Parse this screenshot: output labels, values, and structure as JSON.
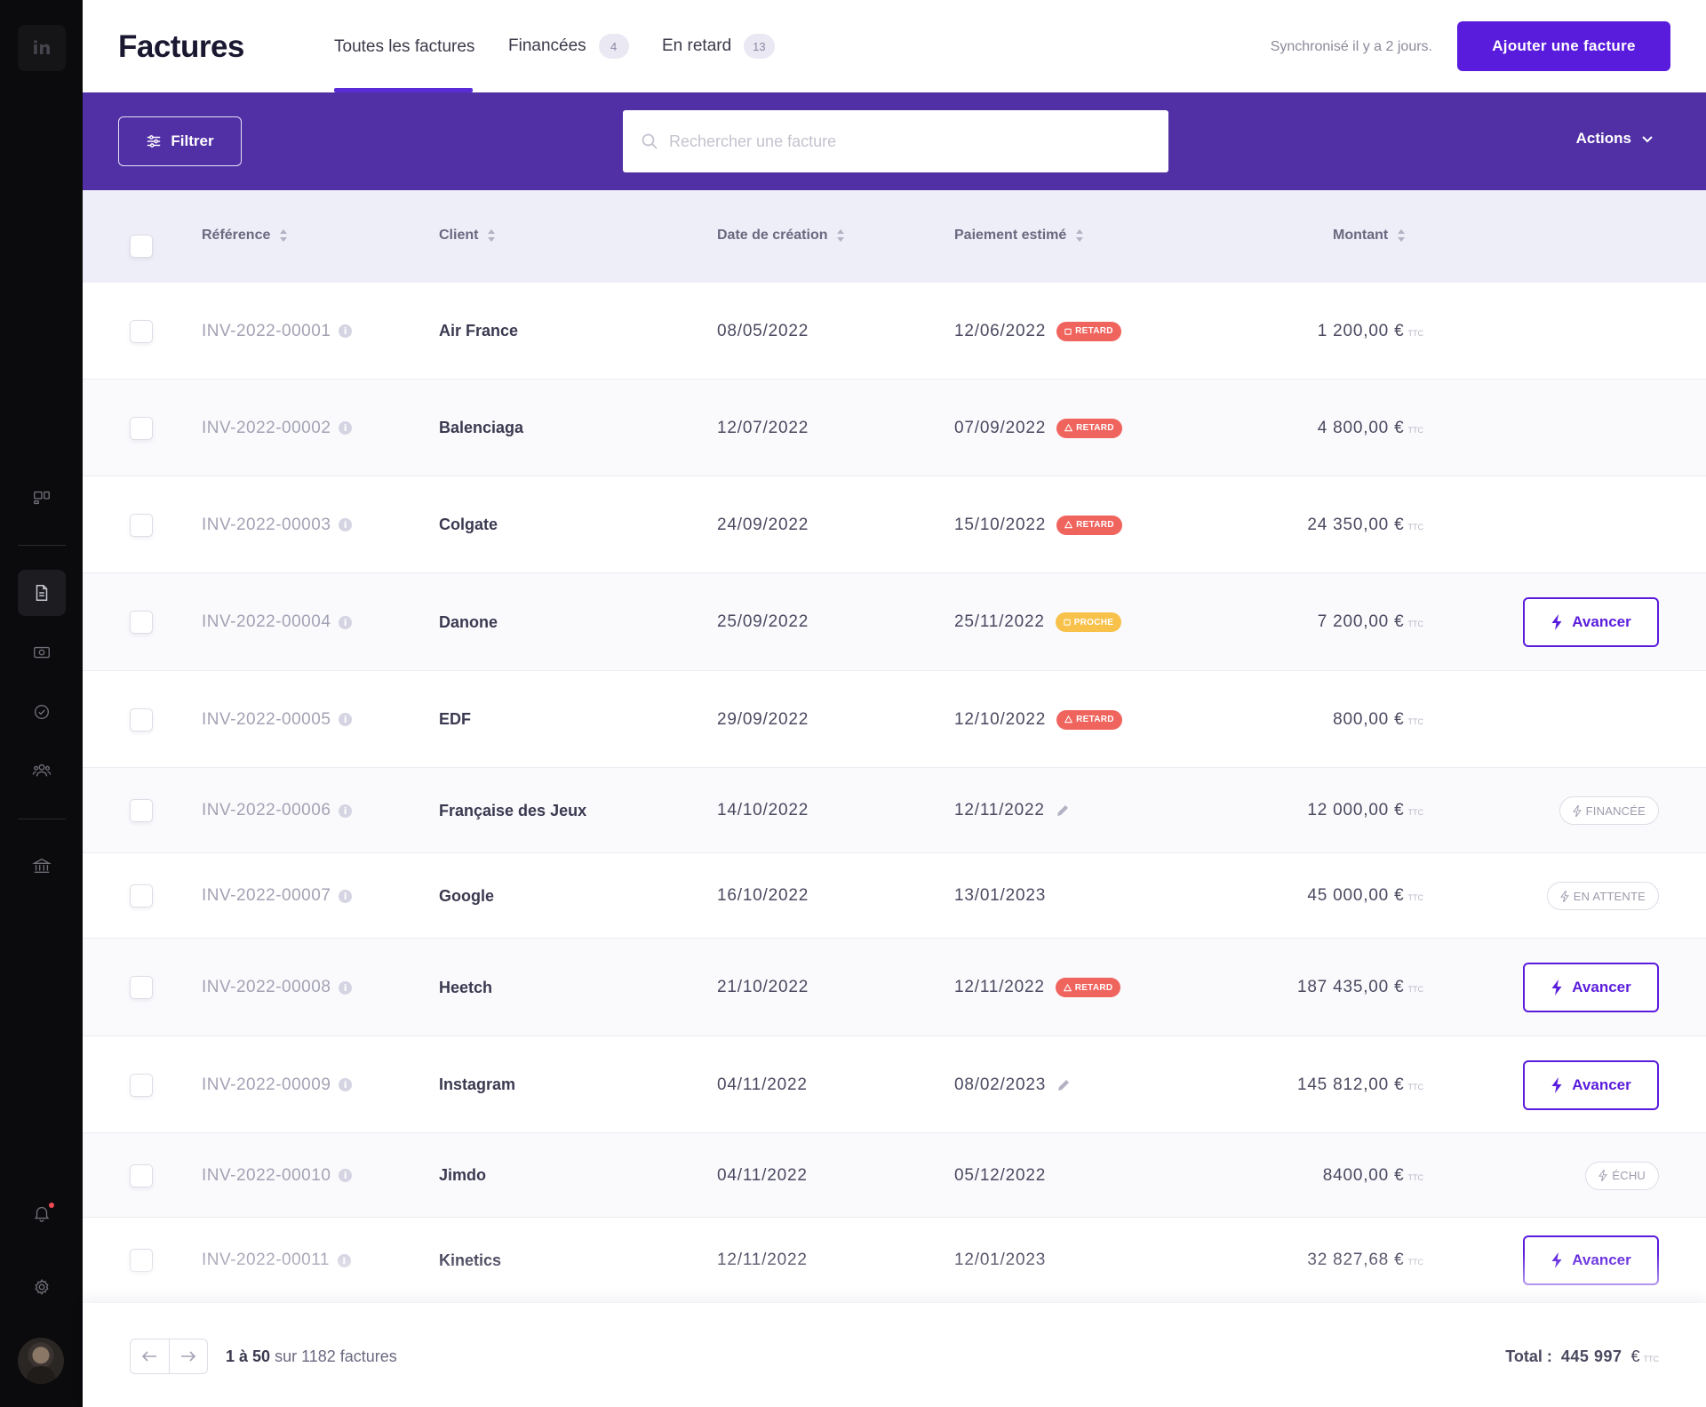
{
  "sidebar": {
    "logo": "in",
    "items": [
      {
        "name": "dashboard-icon"
      },
      {
        "name": "invoice-icon",
        "active": true
      },
      {
        "name": "money-icon"
      },
      {
        "name": "check-circle-icon"
      },
      {
        "name": "users-icon"
      },
      {
        "name": "bank-icon"
      },
      {
        "name": "bell-icon"
      },
      {
        "name": "gear-icon"
      }
    ]
  },
  "header": {
    "title": "Factures",
    "tabs": [
      {
        "label": "Toutes les factures",
        "active": true
      },
      {
        "label": "Financées",
        "count": "4"
      },
      {
        "label": "En retard",
        "count": "13"
      }
    ],
    "sync_text": "Synchronisé il y a 2 jours.",
    "add_button": "Ajouter une facture"
  },
  "toolbar": {
    "filter_label": "Filtrer",
    "search_placeholder": "Rechercher une facture",
    "actions_label": "Actions"
  },
  "table": {
    "columns": [
      "Référence",
      "Client",
      "Date de création",
      "Paiement estimé",
      "Montant"
    ],
    "ttc": "TTC",
    "advance_label": "Avancer",
    "rows": [
      {
        "ref": "INV-2022-00001",
        "client": "Air France",
        "created": "08/05/2022",
        "payment": "12/06/2022",
        "badge": "RETARD",
        "badge_type": "retard",
        "amount": "1 200,00 €"
      },
      {
        "ref": "INV-2022-00002",
        "client": "Balenciaga",
        "created": "12/07/2022",
        "payment": "07/09/2022",
        "badge": "RETARD",
        "badge_type": "retard",
        "amount": "4 800,00 €"
      },
      {
        "ref": "INV-2022-00003",
        "client": "Colgate",
        "created": "24/09/2022",
        "payment": "15/10/2022",
        "badge": "RETARD",
        "badge_type": "retard",
        "amount": "24 350,00 €"
      },
      {
        "ref": "INV-2022-00004",
        "client": "Danone",
        "created": "25/09/2022",
        "payment": "25/11/2022",
        "badge": "PROCHE",
        "badge_type": "proche",
        "amount": "7 200,00 €",
        "action": "advance"
      },
      {
        "ref": "INV-2022-00005",
        "client": "EDF",
        "created": "29/09/2022",
        "payment": "12/10/2022",
        "badge": "RETARD",
        "badge_type": "retard",
        "amount": "800,00 €"
      },
      {
        "ref": "INV-2022-00006",
        "client": "Française des Jeux",
        "created": "14/10/2022",
        "payment": "12/11/2022",
        "edit": true,
        "amount": "12 000,00 €",
        "status": "FINANCÉE"
      },
      {
        "ref": "INV-2022-00007",
        "client": "Google",
        "created": "16/10/2022",
        "payment": "13/01/2023",
        "amount": "45 000,00 €",
        "status": "EN ATTENTE"
      },
      {
        "ref": "INV-2022-00008",
        "client": "Heetch",
        "created": "21/10/2022",
        "payment": "12/11/2022",
        "badge": "RETARD",
        "badge_type": "retard",
        "amount": "187 435,00 €",
        "action": "advance"
      },
      {
        "ref": "INV-2022-00009",
        "client": "Instagram",
        "created": "04/11/2022",
        "payment": "08/02/2023",
        "edit": true,
        "amount": "145 812,00 €",
        "action": "advance"
      },
      {
        "ref": "INV-2022-00010",
        "client": "Jimdo",
        "created": "04/11/2022",
        "payment": "05/12/2022",
        "amount": "8400,00 €",
        "status": "ÉCHU"
      },
      {
        "ref": "INV-2022-00011",
        "client": "Kinetics",
        "created": "12/11/2022",
        "payment": "12/01/2023",
        "amount": "32 827,68 €",
        "action": "advance"
      }
    ]
  },
  "footer": {
    "range": "1 à 50",
    "range_suffix": "sur 1182 factures",
    "total_label": "Total :",
    "total_value": "445 997",
    "total_currency": "€",
    "ttc": "TTC"
  },
  "colors": {
    "accent": "#5a1cdc",
    "toolbar": "#5130a6",
    "retard": "#f0645e",
    "proche": "#f7c14a"
  }
}
